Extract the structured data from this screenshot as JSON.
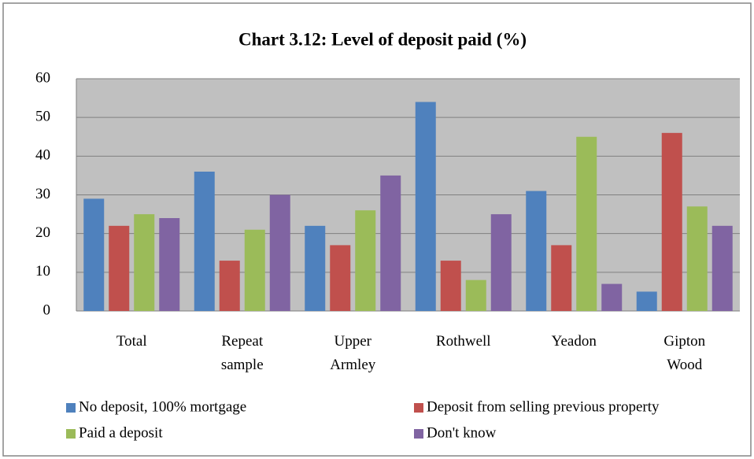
{
  "chart_data": {
    "type": "bar",
    "title": "Chart 3.12: Level of deposit paid (%)",
    "categories": [
      "Total",
      "Repeat sample",
      "Upper Armley",
      "Rothwell",
      "Yeadon",
      "Gipton Wood"
    ],
    "series": [
      {
        "name": "No deposit, 100% mortgage",
        "color": "#4f81bd",
        "values": [
          29,
          36,
          22,
          54,
          31,
          5
        ]
      },
      {
        "name": "Deposit from selling previous property",
        "color": "#c0504d",
        "values": [
          22,
          13,
          17,
          13,
          17,
          46
        ]
      },
      {
        "name": "Paid a deposit",
        "color": "#9bbb59",
        "values": [
          25,
          21,
          26,
          8,
          45,
          27
        ]
      },
      {
        "name": "Don't know",
        "color": "#8064a2",
        "values": [
          24,
          30,
          35,
          25,
          7,
          22
        ]
      }
    ],
    "ylim": [
      0,
      60
    ],
    "yticks": [
      0,
      10,
      20,
      30,
      40,
      50,
      60
    ],
    "grid": true,
    "legend": "bottom"
  }
}
